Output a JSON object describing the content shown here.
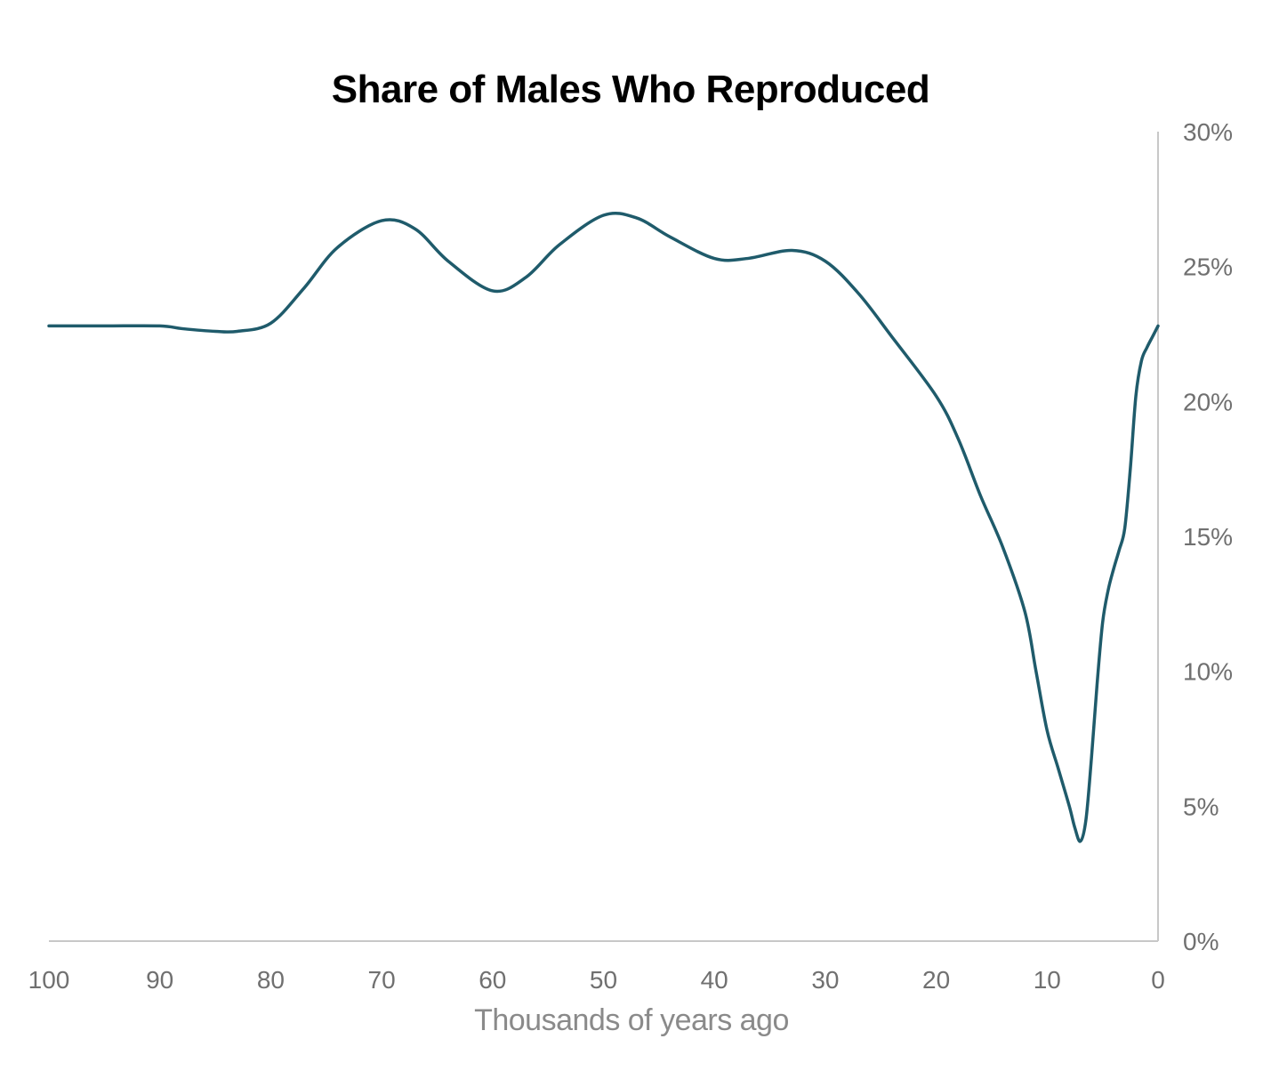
{
  "chart_data": {
    "type": "line",
    "title": "Share of Males Who Reproduced",
    "xlabel": "Thousands of years ago",
    "ylabel": "",
    "x_reversed": true,
    "xlim": [
      100,
      0
    ],
    "ylim": [
      0,
      30
    ],
    "x_ticks": [
      "100",
      "90",
      "80",
      "70",
      "60",
      "50",
      "40",
      "30",
      "20",
      "10",
      "0"
    ],
    "y_ticks": [
      "0%",
      "5%",
      "10%",
      "15%",
      "20%",
      "25%",
      "30%"
    ],
    "y_axis_side": "right",
    "grid": false,
    "colors": {
      "line": "#1f5b6b",
      "axis": "#c8c8c8",
      "tick_text": "#707070",
      "xlabel_text": "#8a8a8a"
    },
    "series": [
      {
        "name": "Share of Males Who Reproduced",
        "x": [
          100,
          95,
          90,
          88,
          85,
          83,
          80,
          77,
          74,
          70,
          67,
          64,
          60,
          57,
          54,
          50,
          47,
          44,
          40,
          37,
          33,
          30,
          27,
          24,
          20,
          18,
          16,
          14,
          12,
          11,
          10,
          9,
          8,
          7.5,
          7,
          6.5,
          6,
          5.5,
          5,
          4.5,
          4,
          3.5,
          3,
          2.5,
          2,
          1.5,
          1,
          0.5,
          0
        ],
        "values": [
          22.8,
          22.8,
          22.8,
          22.7,
          22.6,
          22.6,
          22.9,
          24.2,
          25.7,
          26.7,
          26.4,
          25.2,
          24.1,
          24.6,
          25.8,
          26.9,
          26.8,
          26.1,
          25.3,
          25.3,
          25.6,
          25.2,
          24.0,
          22.4,
          20.2,
          18.6,
          16.5,
          14.6,
          12.2,
          10.0,
          7.8,
          6.4,
          5.0,
          4.2,
          3.7,
          4.5,
          6.8,
          9.5,
          11.8,
          13.0,
          13.8,
          14.5,
          15.3,
          17.5,
          20.2,
          21.5,
          22.0,
          22.4,
          22.8
        ]
      }
    ]
  }
}
